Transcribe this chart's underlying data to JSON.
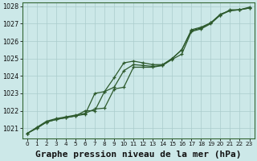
{
  "title": "Graphe pression niveau de la mer (hPa)",
  "bg_color": "#cce8e8",
  "grid_color": "#aacccc",
  "line_color": "#2d5a2d",
  "xlim": [
    -0.5,
    23.5
  ],
  "ylim": [
    1020.4,
    1028.2
  ],
  "yticks": [
    1021,
    1022,
    1023,
    1024,
    1025,
    1026,
    1027,
    1028
  ],
  "xticks": [
    0,
    1,
    2,
    3,
    4,
    5,
    6,
    7,
    8,
    9,
    10,
    11,
    12,
    13,
    14,
    15,
    16,
    17,
    18,
    19,
    20,
    21,
    22,
    23
  ],
  "line1_y": [
    1020.7,
    1021.0,
    1021.35,
    1021.5,
    1021.6,
    1021.7,
    1021.8,
    1023.0,
    1023.1,
    1023.9,
    1024.75,
    1024.85,
    1024.75,
    1024.65,
    1024.65,
    1025.0,
    1025.5,
    1026.6,
    1026.75,
    1027.05,
    1027.55,
    1027.75,
    1027.8,
    1027.9
  ],
  "line2_y": [
    1020.7,
    1021.0,
    1021.35,
    1021.5,
    1021.6,
    1021.7,
    1022.0,
    1022.0,
    1023.1,
    1023.35,
    1024.3,
    1024.65,
    1024.6,
    1024.55,
    1024.6,
    1024.95,
    1025.25,
    1026.55,
    1026.7,
    1027.0,
    1027.5,
    1027.75,
    1027.8,
    1027.9
  ],
  "line3_y": [
    1020.7,
    1021.05,
    1021.4,
    1021.55,
    1021.65,
    1021.75,
    1021.85,
    1022.1,
    1022.15,
    1023.25,
    1023.35,
    1024.5,
    1024.5,
    1024.5,
    1024.6,
    1025.0,
    1025.5,
    1026.65,
    1026.8,
    1027.05,
    1027.5,
    1027.8,
    1027.8,
    1027.95
  ],
  "title_fontsize": 8,
  "tick_fontsize": 6
}
